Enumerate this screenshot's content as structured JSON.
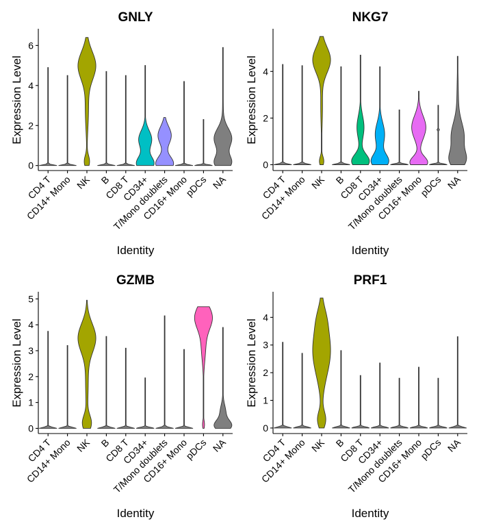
{
  "chart_data": [
    {
      "type": "violin",
      "title": "GNLY",
      "xlabel": "Identity",
      "ylabel": "Expression Level",
      "categories": [
        "CD4 T",
        "CD14+ Mono",
        "NK",
        "B",
        "CD8 T",
        "CD34+",
        "T/Mono doublets",
        "CD16+ Mono",
        "pDCs",
        "NA"
      ],
      "max_values": [
        4.9,
        4.5,
        6.4,
        4.7,
        4.5,
        5.0,
        2.4,
        4.2,
        2.3,
        5.9
      ],
      "yticks": [
        0,
        2,
        4,
        6
      ],
      "ylim": [
        -0.25,
        6.8
      ]
    },
    {
      "type": "violin",
      "title": "NKG7",
      "xlabel": "Identity",
      "ylabel": "Expression Level",
      "categories": [
        "CD4 T",
        "CD14+ Mono",
        "NK",
        "B",
        "CD8 T",
        "CD34+",
        "T/Mono doublets",
        "CD16+ Mono",
        "pDCs",
        "NA"
      ],
      "max_values": [
        4.3,
        4.25,
        5.5,
        4.2,
        4.7,
        4.2,
        2.35,
        3.15,
        2.55,
        4.65
      ],
      "yticks": [
        0,
        2,
        4
      ],
      "ylim": [
        -0.25,
        5.8
      ]
    },
    {
      "type": "violin",
      "title": "GZMB",
      "xlabel": "Identity",
      "ylabel": "Expression Level",
      "categories": [
        "CD4 T",
        "CD14+ Mono",
        "NK",
        "B",
        "CD8 T",
        "CD34+",
        "T/Mono doublets",
        "CD16+ Mono",
        "pDCs",
        "NA"
      ],
      "max_values": [
        3.75,
        3.2,
        4.95,
        3.55,
        3.1,
        1.95,
        4.35,
        3.05,
        4.7,
        3.9
      ],
      "yticks": [
        0,
        1,
        2,
        3,
        4,
        5
      ],
      "ylim": [
        -0.2,
        5.25
      ]
    },
    {
      "type": "violin",
      "title": "PRF1",
      "xlabel": "Identity",
      "ylabel": "Expression Level",
      "categories": [
        "CD4 T",
        "CD14+ Mono",
        "NK",
        "B",
        "CD8 T",
        "CD34+",
        "T/Mono doublets",
        "CD16+ Mono",
        "pDCs",
        "NA"
      ],
      "max_values": [
        3.1,
        2.7,
        4.7,
        2.8,
        1.9,
        2.35,
        1.8,
        2.2,
        1.8,
        3.3
      ],
      "yticks": [
        0,
        1,
        2,
        3,
        4
      ],
      "ylim": [
        -0.2,
        4.9
      ]
    }
  ],
  "colors": [
    "#F8766D",
    "#D89000",
    "#A3A500",
    "#39B600",
    "#00BF7D",
    "#00BFC4",
    "#00B0F6",
    "#9590FF",
    "#E76BF3",
    "#FF62BC",
    "#7F7F7F"
  ]
}
